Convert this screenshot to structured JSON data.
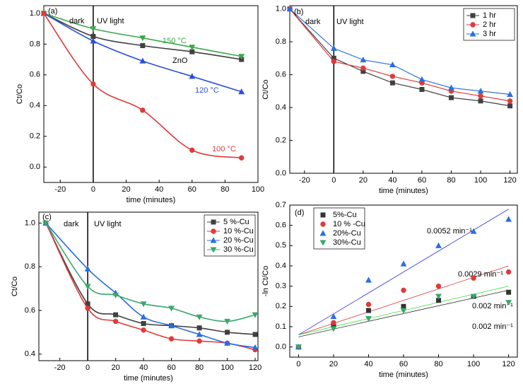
{
  "chart_data": [
    {
      "type": "line",
      "smooth": true,
      "xlabel": "time (minutes)",
      "ylabel": "Ct/Co",
      "xlim": [
        -30,
        100
      ],
      "xticks": [
        -20,
        0,
        20,
        40,
        60,
        80,
        100
      ],
      "ylim": [
        -0.1,
        1.05
      ],
      "yticks": [
        {
          "value": 0,
          "label": "0.0"
        },
        0.2,
        0.4,
        0.6,
        0.8,
        {
          "value": 1,
          "label": "1.0"
        }
      ],
      "x": [
        -30,
        0,
        30,
        60,
        90
      ],
      "series": [
        {
          "name": "ZnO",
          "color": "#404040",
          "marker": "square",
          "values": [
            1.0,
            0.85,
            0.79,
            0.75,
            0.7
          ]
        },
        {
          "name": "150 °C",
          "color": "#3aa84a",
          "marker": "down",
          "values": [
            1.0,
            0.9,
            0.84,
            0.78,
            0.72
          ]
        },
        {
          "name": "120 °C",
          "color": "#2a50d8",
          "marker": "up",
          "values": [
            1.0,
            0.82,
            0.69,
            0.59,
            0.49
          ]
        },
        {
          "name": "100 °C",
          "color": "#e03a3a",
          "marker": "circle",
          "values": [
            1.0,
            0.54,
            0.37,
            0.11,
            0.06
          ]
        }
      ],
      "annotations": [
        {
          "text": "(a)",
          "color": "#000"
        },
        {
          "text": "dark",
          "color": "#000"
        },
        {
          "text": "UV light",
          "color": "#000"
        },
        {
          "text": "150 °C",
          "color": "#3aa84a"
        },
        {
          "text": "ZnO",
          "color": "#000"
        },
        {
          "text": "120 °C",
          "color": "#2a50d8"
        },
        {
          "text": "100 °C",
          "color": "#e03a3a"
        }
      ]
    },
    {
      "type": "line",
      "smooth": false,
      "xlabel": "time (minutes)",
      "ylabel": "Ct/Co",
      "legend": "upper right",
      "xlim": [
        -30,
        125
      ],
      "xticks": [
        -20,
        0,
        20,
        40,
        60,
        80,
        100,
        120
      ],
      "ylim": [
        0,
        1.02
      ],
      "yticks": [
        {
          "value": 0,
          "label": "0.0"
        },
        0.2,
        0.4,
        0.6,
        0.8,
        {
          "value": 1,
          "label": "1.0"
        }
      ],
      "x": [
        -30,
        0,
        20,
        40,
        60,
        80,
        100,
        120
      ],
      "series": [
        {
          "name": "1 hr",
          "color": "#404040",
          "marker": "square",
          "values": [
            1.0,
            0.7,
            0.62,
            0.55,
            0.51,
            0.46,
            0.44,
            0.41
          ]
        },
        {
          "name": "2 hr",
          "color": "#e03a3a",
          "marker": "circle",
          "values": [
            1.0,
            0.68,
            0.64,
            0.59,
            0.55,
            0.5,
            0.47,
            0.44
          ]
        },
        {
          "name": "3 hr",
          "color": "#2a6ee0",
          "marker": "up",
          "values": [
            1.0,
            0.76,
            0.69,
            0.66,
            0.57,
            0.52,
            0.5,
            0.48
          ]
        }
      ],
      "annotations": [
        {
          "text": "(b)",
          "color": "#000"
        },
        {
          "text": "dark",
          "color": "#000"
        },
        {
          "text": "UV light",
          "color": "#000"
        }
      ]
    },
    {
      "type": "line",
      "smooth": true,
      "xlabel": "time (minutes)",
      "ylabel": "Ct/Co",
      "legend": "upper right",
      "xlim": [
        -35,
        122
      ],
      "xticks": [
        -20,
        0,
        20,
        40,
        60,
        80,
        100,
        120
      ],
      "ylim": [
        0.37,
        1.05
      ],
      "yticks": [
        0.4,
        0.6,
        0.8,
        {
          "value": 1,
          "label": "1.0"
        }
      ],
      "x": [
        -30,
        0,
        20,
        40,
        60,
        80,
        100,
        120
      ],
      "series": [
        {
          "name": "5 %-Cu",
          "color": "#404040",
          "marker": "square",
          "values": [
            1.0,
            0.63,
            0.58,
            0.54,
            0.53,
            0.52,
            0.5,
            0.49
          ]
        },
        {
          "name": "10 %-Cu",
          "color": "#e03a3a",
          "marker": "circle",
          "values": [
            1.0,
            0.61,
            0.55,
            0.51,
            0.47,
            0.46,
            0.45,
            0.42
          ]
        },
        {
          "name": "20 %-Cu",
          "color": "#2a6ee0",
          "marker": "up",
          "values": [
            1.0,
            0.79,
            0.68,
            0.57,
            0.53,
            0.49,
            0.45,
            0.43
          ]
        },
        {
          "name": "30 %-Cu",
          "color": "#3aa86a",
          "marker": "down",
          "values": [
            1.0,
            0.71,
            0.67,
            0.63,
            0.61,
            0.57,
            0.55,
            0.58
          ]
        }
      ],
      "annotations": [
        {
          "text": "(c)",
          "color": "#000"
        },
        {
          "text": "dark",
          "color": "#000"
        },
        {
          "text": "UV light",
          "color": "#000"
        }
      ]
    },
    {
      "type": "scatter",
      "xlabel": "time (minutes)",
      "ylabel": "-ln Ct/Co",
      "legend": "upper left",
      "xlim": [
        -5,
        125
      ],
      "xticks": [
        0,
        20,
        40,
        60,
        80,
        100,
        120
      ],
      "ylim": [
        -0.05,
        0.7
      ],
      "yticks": [
        {
          "value": 0,
          "label": "0.0"
        },
        0.1,
        0.2,
        0.3,
        0.4,
        0.5,
        0.6,
        0.7
      ],
      "x": [
        0,
        20,
        40,
        60,
        80,
        100,
        120
      ],
      "series": [
        {
          "name": "5%-Cu",
          "color": "#333333",
          "marker": "square",
          "values": [
            0,
            0.11,
            0.18,
            0.2,
            0.23,
            0.25,
            0.27
          ]
        },
        {
          "name": "10 % -Cu",
          "color": "#e03a3a",
          "marker": "circle",
          "values": [
            0,
            0.12,
            0.21,
            0.28,
            0.3,
            0.34,
            0.37
          ]
        },
        {
          "name": "20%-Cu",
          "color": "#2a6ee0",
          "marker": "up",
          "values": [
            0,
            0.15,
            0.33,
            0.41,
            0.5,
            0.57,
            0.63
          ]
        },
        {
          "name": "30%-Cu",
          "color": "#3aa86a",
          "marker": "down",
          "values": [
            0,
            0.09,
            0.14,
            0.18,
            0.25,
            0.25,
            0.22
          ]
        }
      ],
      "fits": [
        {
          "label": "0.002 min⁻¹",
          "color": "#333333",
          "x": [
            0,
            120
          ],
          "values": [
            0.05,
            0.28
          ]
        },
        {
          "label": "0.0029 min⁻¹",
          "color": "#e03a3a",
          "x": [
            0,
            120
          ],
          "values": [
            0.06,
            0.4
          ]
        },
        {
          "label": "0.0052 min⁻¹",
          "color": "#2a2ae0",
          "x": [
            0,
            120
          ],
          "values": [
            0.06,
            0.68
          ]
        },
        {
          "label": "0.002 min⁻¹",
          "color": "#33dd33",
          "x": [
            0,
            120
          ],
          "values": [
            0.06,
            0.3
          ]
        }
      ],
      "annotations": [
        {
          "text": "(d)",
          "color": "#000"
        }
      ]
    }
  ]
}
